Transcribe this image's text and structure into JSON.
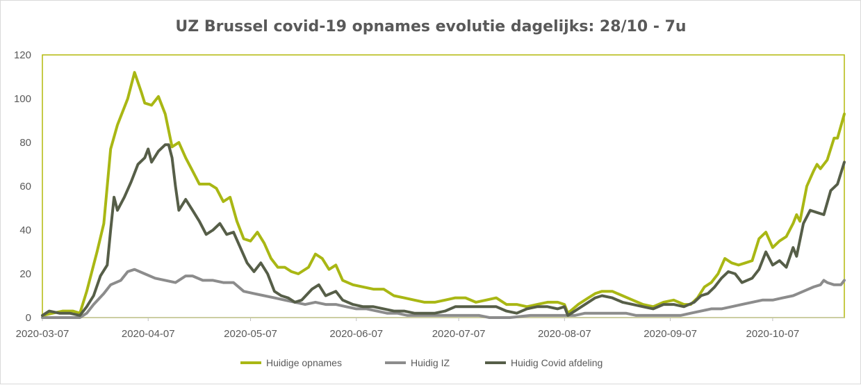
{
  "chart_data": {
    "type": "line",
    "title": "UZ Brussel covid-19 opnames evolutie dagelijks: 28/10 - 7u",
    "xlabel": "",
    "ylabel": "",
    "ylim": [
      0,
      120
    ],
    "yticks": [
      "0",
      "20",
      "40",
      "60",
      "80",
      "100",
      "120"
    ],
    "x_start": "2020-03-07",
    "x_end": "2020-10-28",
    "xticks": [
      "2020-03-07",
      "2020-04-07",
      "2020-05-07",
      "2020-06-07",
      "2020-07-07",
      "2020-08-07",
      "2020-09-07",
      "2020-10-07"
    ],
    "grid": false,
    "legend_position": "bottom",
    "colors": {
      "opnames": "#a9b714",
      "iz": "#8c8c8c",
      "afdeling": "#565e48",
      "frame": "#b3b80a"
    },
    "series": [
      {
        "name": "Huidige opnames",
        "points": [
          [
            "2020-03-07",
            1
          ],
          [
            "2020-03-10",
            2
          ],
          [
            "2020-03-13",
            3
          ],
          [
            "2020-03-16",
            3
          ],
          [
            "2020-03-18",
            2
          ],
          [
            "2020-03-20",
            12
          ],
          [
            "2020-03-23",
            30
          ],
          [
            "2020-03-25",
            43
          ],
          [
            "2020-03-27",
            77
          ],
          [
            "2020-03-29",
            88
          ],
          [
            "2020-04-01",
            100
          ],
          [
            "2020-04-03",
            112
          ],
          [
            "2020-04-05",
            103
          ],
          [
            "2020-04-06",
            98
          ],
          [
            "2020-04-08",
            97
          ],
          [
            "2020-04-10",
            101
          ],
          [
            "2020-04-12",
            93
          ],
          [
            "2020-04-14",
            78
          ],
          [
            "2020-04-16",
            80
          ],
          [
            "2020-04-18",
            73
          ],
          [
            "2020-04-20",
            67
          ],
          [
            "2020-04-22",
            61
          ],
          [
            "2020-04-25",
            61
          ],
          [
            "2020-04-27",
            59
          ],
          [
            "2020-04-29",
            53
          ],
          [
            "2020-05-01",
            55
          ],
          [
            "2020-05-03",
            44
          ],
          [
            "2020-05-05",
            36
          ],
          [
            "2020-05-07",
            35
          ],
          [
            "2020-05-09",
            39
          ],
          [
            "2020-05-11",
            34
          ],
          [
            "2020-05-13",
            27
          ],
          [
            "2020-05-15",
            23
          ],
          [
            "2020-05-17",
            23
          ],
          [
            "2020-05-19",
            21
          ],
          [
            "2020-05-21",
            20
          ],
          [
            "2020-05-24",
            23
          ],
          [
            "2020-05-26",
            29
          ],
          [
            "2020-05-28",
            27
          ],
          [
            "2020-05-30",
            22
          ],
          [
            "2020-06-01",
            24
          ],
          [
            "2020-06-03",
            17
          ],
          [
            "2020-06-06",
            15
          ],
          [
            "2020-06-09",
            14
          ],
          [
            "2020-06-12",
            13
          ],
          [
            "2020-06-15",
            13
          ],
          [
            "2020-06-18",
            10
          ],
          [
            "2020-06-21",
            9
          ],
          [
            "2020-06-24",
            8
          ],
          [
            "2020-06-27",
            7
          ],
          [
            "2020-06-30",
            7
          ],
          [
            "2020-07-03",
            8
          ],
          [
            "2020-07-06",
            9
          ],
          [
            "2020-07-09",
            9
          ],
          [
            "2020-07-12",
            7
          ],
          [
            "2020-07-15",
            8
          ],
          [
            "2020-07-18",
            9
          ],
          [
            "2020-07-21",
            6
          ],
          [
            "2020-07-24",
            6
          ],
          [
            "2020-07-27",
            5
          ],
          [
            "2020-07-30",
            6
          ],
          [
            "2020-08-02",
            7
          ],
          [
            "2020-08-05",
            7
          ],
          [
            "2020-08-07",
            6
          ],
          [
            "2020-08-08",
            2
          ],
          [
            "2020-08-11",
            6
          ],
          [
            "2020-08-14",
            9
          ],
          [
            "2020-08-16",
            11
          ],
          [
            "2020-08-18",
            12
          ],
          [
            "2020-08-21",
            12
          ],
          [
            "2020-08-24",
            10
          ],
          [
            "2020-08-27",
            8
          ],
          [
            "2020-08-30",
            6
          ],
          [
            "2020-09-02",
            5
          ],
          [
            "2020-09-05",
            7
          ],
          [
            "2020-09-08",
            8
          ],
          [
            "2020-09-11",
            6
          ],
          [
            "2020-09-13",
            6
          ],
          [
            "2020-09-15",
            9
          ],
          [
            "2020-09-17",
            14
          ],
          [
            "2020-09-19",
            16
          ],
          [
            "2020-09-21",
            20
          ],
          [
            "2020-09-23",
            27
          ],
          [
            "2020-09-25",
            25
          ],
          [
            "2020-09-27",
            24
          ],
          [
            "2020-09-29",
            25
          ],
          [
            "2020-10-01",
            26
          ],
          [
            "2020-10-03",
            36
          ],
          [
            "2020-10-05",
            39
          ],
          [
            "2020-10-07",
            32
          ],
          [
            "2020-10-09",
            35
          ],
          [
            "2020-10-11",
            37
          ],
          [
            "2020-10-13",
            43
          ],
          [
            "2020-10-14",
            47
          ],
          [
            "2020-10-15",
            44
          ],
          [
            "2020-10-17",
            60
          ],
          [
            "2020-10-19",
            67
          ],
          [
            "2020-10-20",
            70
          ],
          [
            "2020-10-21",
            68
          ],
          [
            "2020-10-23",
            72
          ],
          [
            "2020-10-25",
            82
          ],
          [
            "2020-10-26",
            82
          ],
          [
            "2020-10-28",
            93
          ]
        ]
      },
      {
        "name": "Huidig IZ",
        "points": [
          [
            "2020-03-07",
            0
          ],
          [
            "2020-03-18",
            0
          ],
          [
            "2020-03-20",
            2
          ],
          [
            "2020-03-22",
            6
          ],
          [
            "2020-03-25",
            11
          ],
          [
            "2020-03-27",
            15
          ],
          [
            "2020-03-30",
            17
          ],
          [
            "2020-04-01",
            21
          ],
          [
            "2020-04-03",
            22
          ],
          [
            "2020-04-06",
            20
          ],
          [
            "2020-04-09",
            18
          ],
          [
            "2020-04-12",
            17
          ],
          [
            "2020-04-15",
            16
          ],
          [
            "2020-04-18",
            19
          ],
          [
            "2020-04-20",
            19
          ],
          [
            "2020-04-23",
            17
          ],
          [
            "2020-04-26",
            17
          ],
          [
            "2020-04-29",
            16
          ],
          [
            "2020-05-02",
            16
          ],
          [
            "2020-05-05",
            12
          ],
          [
            "2020-05-08",
            11
          ],
          [
            "2020-05-11",
            10
          ],
          [
            "2020-05-14",
            9
          ],
          [
            "2020-05-17",
            8
          ],
          [
            "2020-05-20",
            7
          ],
          [
            "2020-05-23",
            6
          ],
          [
            "2020-05-26",
            7
          ],
          [
            "2020-05-29",
            6
          ],
          [
            "2020-06-01",
            6
          ],
          [
            "2020-06-04",
            5
          ],
          [
            "2020-06-07",
            4
          ],
          [
            "2020-06-10",
            4
          ],
          [
            "2020-06-13",
            3
          ],
          [
            "2020-06-16",
            2
          ],
          [
            "2020-06-19",
            2
          ],
          [
            "2020-06-22",
            1
          ],
          [
            "2020-06-25",
            1
          ],
          [
            "2020-06-28",
            1
          ],
          [
            "2020-07-01",
            1
          ],
          [
            "2020-07-04",
            1
          ],
          [
            "2020-07-07",
            1
          ],
          [
            "2020-07-10",
            1
          ],
          [
            "2020-07-13",
            1
          ],
          [
            "2020-07-16",
            0
          ],
          [
            "2020-07-22",
            0
          ],
          [
            "2020-07-28",
            1
          ],
          [
            "2020-08-03",
            1
          ],
          [
            "2020-08-07",
            1
          ],
          [
            "2020-08-10",
            1
          ],
          [
            "2020-08-13",
            2
          ],
          [
            "2020-08-16",
            2
          ],
          [
            "2020-08-19",
            2
          ],
          [
            "2020-08-22",
            2
          ],
          [
            "2020-08-25",
            2
          ],
          [
            "2020-08-28",
            1
          ],
          [
            "2020-09-01",
            1
          ],
          [
            "2020-09-04",
            1
          ],
          [
            "2020-09-07",
            1
          ],
          [
            "2020-09-10",
            1
          ],
          [
            "2020-09-13",
            2
          ],
          [
            "2020-09-16",
            3
          ],
          [
            "2020-09-19",
            4
          ],
          [
            "2020-09-22",
            4
          ],
          [
            "2020-09-25",
            5
          ],
          [
            "2020-09-28",
            6
          ],
          [
            "2020-10-01",
            7
          ],
          [
            "2020-10-04",
            8
          ],
          [
            "2020-10-07",
            8
          ],
          [
            "2020-10-10",
            9
          ],
          [
            "2020-10-13",
            10
          ],
          [
            "2020-10-16",
            12
          ],
          [
            "2020-10-19",
            14
          ],
          [
            "2020-10-21",
            15
          ],
          [
            "2020-10-22",
            17
          ],
          [
            "2020-10-23",
            16
          ],
          [
            "2020-10-25",
            15
          ],
          [
            "2020-10-27",
            15
          ],
          [
            "2020-10-28",
            17
          ]
        ]
      },
      {
        "name": "Huidig Covid afdeling",
        "points": [
          [
            "2020-03-07",
            1
          ],
          [
            "2020-03-09",
            3
          ],
          [
            "2020-03-12",
            2
          ],
          [
            "2020-03-15",
            2
          ],
          [
            "2020-03-18",
            1
          ],
          [
            "2020-03-20",
            5
          ],
          [
            "2020-03-22",
            10
          ],
          [
            "2020-03-24",
            19
          ],
          [
            "2020-03-26",
            24
          ],
          [
            "2020-03-27",
            40
          ],
          [
            "2020-03-28",
            55
          ],
          [
            "2020-03-29",
            49
          ],
          [
            "2020-03-31",
            55
          ],
          [
            "2020-04-02",
            62
          ],
          [
            "2020-04-04",
            70
          ],
          [
            "2020-04-06",
            73
          ],
          [
            "2020-04-07",
            77
          ],
          [
            "2020-04-08",
            71
          ],
          [
            "2020-04-10",
            76
          ],
          [
            "2020-04-12",
            79
          ],
          [
            "2020-04-13",
            79
          ],
          [
            "2020-04-14",
            73
          ],
          [
            "2020-04-15",
            60
          ],
          [
            "2020-04-16",
            49
          ],
          [
            "2020-04-18",
            54
          ],
          [
            "2020-04-20",
            49
          ],
          [
            "2020-04-22",
            44
          ],
          [
            "2020-04-24",
            38
          ],
          [
            "2020-04-26",
            40
          ],
          [
            "2020-04-28",
            43
          ],
          [
            "2020-04-30",
            38
          ],
          [
            "2020-05-02",
            39
          ],
          [
            "2020-05-04",
            32
          ],
          [
            "2020-05-06",
            25
          ],
          [
            "2020-05-08",
            21
          ],
          [
            "2020-05-10",
            25
          ],
          [
            "2020-05-12",
            20
          ],
          [
            "2020-05-14",
            12
          ],
          [
            "2020-05-16",
            10
          ],
          [
            "2020-05-18",
            9
          ],
          [
            "2020-05-20",
            7
          ],
          [
            "2020-05-22",
            8
          ],
          [
            "2020-05-25",
            13
          ],
          [
            "2020-05-27",
            15
          ],
          [
            "2020-05-29",
            10
          ],
          [
            "2020-06-01",
            12
          ],
          [
            "2020-06-03",
            8
          ],
          [
            "2020-06-06",
            6
          ],
          [
            "2020-06-09",
            5
          ],
          [
            "2020-06-12",
            5
          ],
          [
            "2020-06-15",
            4
          ],
          [
            "2020-06-18",
            3
          ],
          [
            "2020-06-21",
            3
          ],
          [
            "2020-06-24",
            2
          ],
          [
            "2020-06-27",
            2
          ],
          [
            "2020-06-30",
            2
          ],
          [
            "2020-07-03",
            3
          ],
          [
            "2020-07-06",
            5
          ],
          [
            "2020-07-09",
            5
          ],
          [
            "2020-07-12",
            5
          ],
          [
            "2020-07-15",
            5
          ],
          [
            "2020-07-18",
            5
          ],
          [
            "2020-07-21",
            3
          ],
          [
            "2020-07-24",
            2
          ],
          [
            "2020-07-27",
            4
          ],
          [
            "2020-07-30",
            5
          ],
          [
            "2020-08-02",
            5
          ],
          [
            "2020-08-05",
            4
          ],
          [
            "2020-08-07",
            5
          ],
          [
            "2020-08-08",
            1
          ],
          [
            "2020-08-11",
            4
          ],
          [
            "2020-08-14",
            7
          ],
          [
            "2020-08-16",
            9
          ],
          [
            "2020-08-18",
            10
          ],
          [
            "2020-08-21",
            9
          ],
          [
            "2020-08-24",
            7
          ],
          [
            "2020-08-27",
            6
          ],
          [
            "2020-08-30",
            5
          ],
          [
            "2020-09-02",
            4
          ],
          [
            "2020-09-05",
            6
          ],
          [
            "2020-09-08",
            6
          ],
          [
            "2020-09-11",
            5
          ],
          [
            "2020-09-14",
            7
          ],
          [
            "2020-09-16",
            10
          ],
          [
            "2020-09-18",
            11
          ],
          [
            "2020-09-20",
            14
          ],
          [
            "2020-09-22",
            18
          ],
          [
            "2020-09-24",
            21
          ],
          [
            "2020-09-26",
            20
          ],
          [
            "2020-09-28",
            16
          ],
          [
            "2020-10-01",
            18
          ],
          [
            "2020-10-03",
            22
          ],
          [
            "2020-10-05",
            30
          ],
          [
            "2020-10-07",
            24
          ],
          [
            "2020-10-09",
            26
          ],
          [
            "2020-10-11",
            23
          ],
          [
            "2020-10-13",
            32
          ],
          [
            "2020-10-14",
            28
          ],
          [
            "2020-10-16",
            43
          ],
          [
            "2020-10-18",
            49
          ],
          [
            "2020-10-20",
            48
          ],
          [
            "2020-10-22",
            47
          ],
          [
            "2020-10-24",
            58
          ],
          [
            "2020-10-26",
            61
          ],
          [
            "2020-10-28",
            71
          ]
        ]
      }
    ]
  }
}
